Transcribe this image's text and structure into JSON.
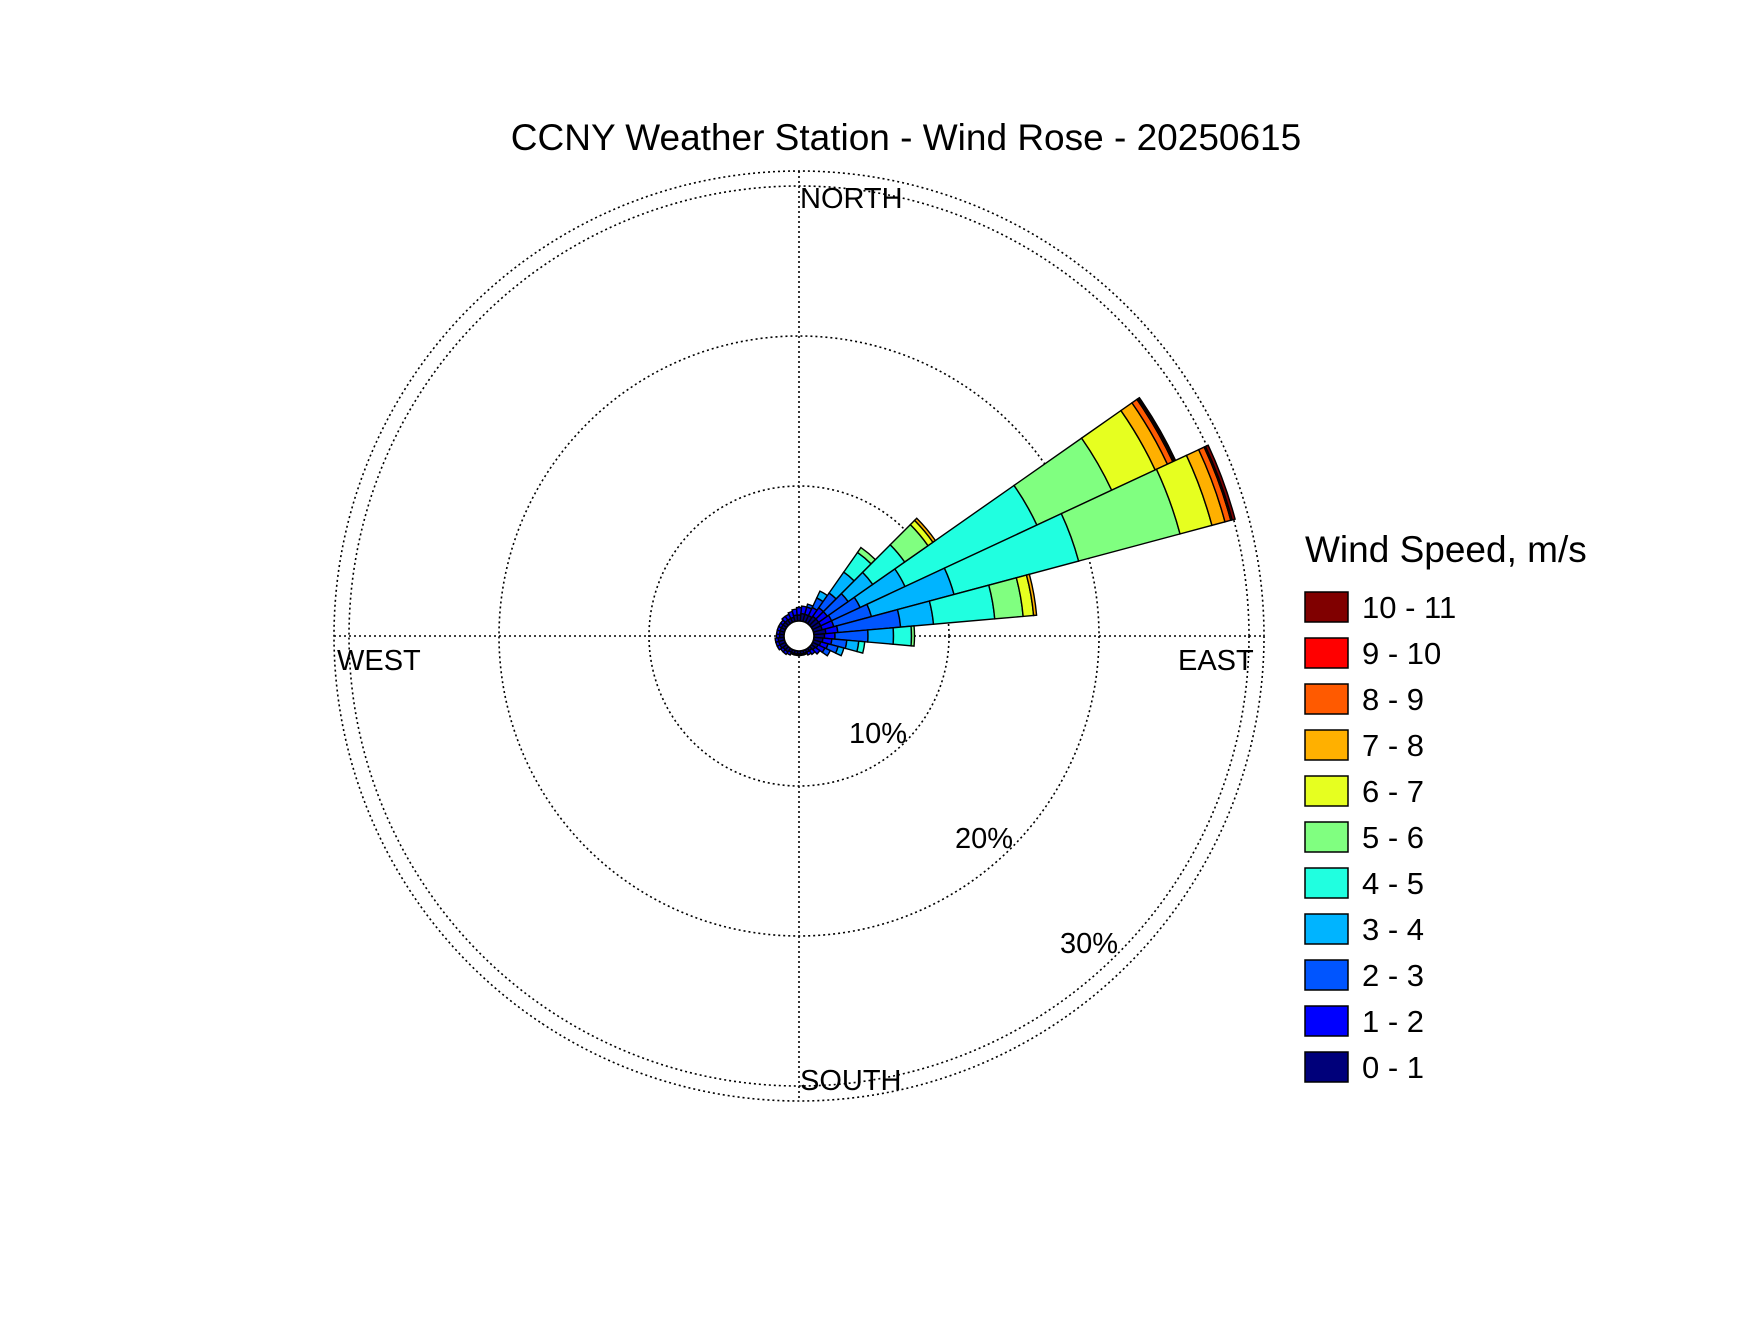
{
  "chart_data": {
    "type": "windrose",
    "title": "CCNY Weather Station - Wind Rose - 20250615",
    "direction_labels": {
      "north": "NORTH",
      "east": "EAST",
      "south": "SOUTH",
      "west": "WEST"
    },
    "radial_axis": {
      "ticks": [
        10,
        20,
        30
      ],
      "tick_labels": [
        "10%",
        "20%",
        "30%"
      ],
      "max": 31,
      "unit": "%"
    },
    "grid": true,
    "legend": {
      "title": "Wind Speed, m/s",
      "placement": "right",
      "bins": [
        {
          "label": "10 - 11",
          "color": "#800000"
        },
        {
          "label": "9 - 10",
          "color": "#ff0000"
        },
        {
          "label": "8 - 9",
          "color": "#ff5a00"
        },
        {
          "label": "7 - 8",
          "color": "#ffb000"
        },
        {
          "label": "6 - 7",
          "color": "#e6ff20"
        },
        {
          "label": "5 - 6",
          "color": "#80ff80"
        },
        {
          "label": "4 - 5",
          "color": "#20ffe0"
        },
        {
          "label": "3 - 4",
          "color": "#00b4ff"
        },
        {
          "label": "2 - 3",
          "color": "#0055ff"
        },
        {
          "label": "1 - 2",
          "color": "#0000ff"
        },
        {
          "label": "0 - 1",
          "color": "#00007a"
        }
      ]
    },
    "bin_colors_low_to_high": [
      "#00007a",
      "#0000ff",
      "#0055ff",
      "#00b4ff",
      "#20ffe0",
      "#80ff80",
      "#e6ff20",
      "#ffb000",
      "#ff5a00",
      "#ff0000",
      "#800000"
    ],
    "center_radius_percent": 1.0,
    "sector_width_deg": 10,
    "sectors": [
      {
        "direction_deg": 60,
        "cumulative_percent": [
          1.6,
          2.4,
          4.5,
          7.8,
          17.5,
          23.0,
          26.2,
          27.1,
          27.5,
          27.6,
          27.7
        ]
      },
      {
        "direction_deg": 70,
        "cumulative_percent": [
          1.6,
          2.4,
          5.0,
          10.7,
          19.3,
          26.3,
          28.5,
          29.4,
          29.8,
          29.9,
          30.1
        ]
      },
      {
        "direction_deg": 80,
        "cumulative_percent": [
          1.8,
          2.6,
          6.8,
          9.0,
          13.1,
          15.0,
          15.7,
          15.9
        ]
      },
      {
        "direction_deg": 90,
        "cumulative_percent": [
          1.7,
          2.4,
          4.6,
          6.3,
          7.5,
          7.7
        ]
      },
      {
        "direction_deg": 100,
        "cumulative_percent": [
          1.6,
          2.2,
          3.2,
          4.0,
          4.4
        ]
      },
      {
        "direction_deg": 110,
        "cumulative_percent": [
          1.5,
          2.0,
          2.7,
          3.1
        ]
      },
      {
        "direction_deg": 120,
        "cumulative_percent": [
          1.4,
          1.9,
          2.3
        ]
      },
      {
        "direction_deg": 130,
        "cumulative_percent": [
          1.3,
          1.7
        ]
      },
      {
        "direction_deg": 140,
        "cumulative_percent": [
          1.2,
          1.5
        ]
      },
      {
        "direction_deg": 150,
        "cumulative_percent": [
          1.2,
          1.4
        ]
      },
      {
        "direction_deg": 160,
        "cumulative_percent": [
          1.2,
          1.3
        ]
      },
      {
        "direction_deg": 170,
        "cumulative_percent": [
          1.2,
          1.3
        ]
      },
      {
        "direction_deg": 180,
        "cumulative_percent": [
          1.2,
          1.3
        ]
      },
      {
        "direction_deg": 190,
        "cumulative_percent": [
          1.2,
          1.3
        ]
      },
      {
        "direction_deg": 200,
        "cumulative_percent": [
          1.2,
          1.3
        ]
      },
      {
        "direction_deg": 210,
        "cumulative_percent": [
          1.2,
          1.4
        ]
      },
      {
        "direction_deg": 220,
        "cumulative_percent": [
          1.3,
          1.5
        ]
      },
      {
        "direction_deg": 230,
        "cumulative_percent": [
          1.3,
          1.5
        ]
      },
      {
        "direction_deg": 240,
        "cumulative_percent": [
          1.4,
          1.6
        ]
      },
      {
        "direction_deg": 250,
        "cumulative_percent": [
          1.4,
          1.6
        ]
      },
      {
        "direction_deg": 260,
        "cumulative_percent": [
          1.4,
          1.6
        ]
      },
      {
        "direction_deg": 270,
        "cumulative_percent": [
          1.3,
          1.5
        ]
      },
      {
        "direction_deg": 280,
        "cumulative_percent": [
          1.3,
          1.5
        ]
      },
      {
        "direction_deg": 290,
        "cumulative_percent": [
          1.3,
          1.5
        ]
      },
      {
        "direction_deg": 300,
        "cumulative_percent": [
          1.3,
          1.5
        ]
      },
      {
        "direction_deg": 310,
        "cumulative_percent": [
          1.3,
          1.5
        ]
      },
      {
        "direction_deg": 320,
        "cumulative_percent": [
          1.3,
          1.6
        ]
      },
      {
        "direction_deg": 330,
        "cumulative_percent": [
          1.3,
          1.6
        ]
      },
      {
        "direction_deg": 340,
        "cumulative_percent": [
          1.3,
          1.7
        ]
      },
      {
        "direction_deg": 350,
        "cumulative_percent": [
          1.4,
          1.8
        ]
      },
      {
        "direction_deg": 0,
        "cumulative_percent": [
          1.4,
          1.9
        ]
      },
      {
        "direction_deg": 10,
        "cumulative_percent": [
          1.5,
          2.0
        ]
      },
      {
        "direction_deg": 20,
        "cumulative_percent": [
          1.5,
          2.0,
          2.2
        ]
      },
      {
        "direction_deg": 30,
        "cumulative_percent": [
          1.5,
          2.1,
          2.8,
          3.3
        ]
      },
      {
        "direction_deg": 40,
        "cumulative_percent": [
          1.6,
          2.3,
          3.5,
          5.2,
          6.8,
          7.2
        ]
      },
      {
        "direction_deg": 50,
        "cumulative_percent": [
          1.6,
          2.3,
          4.0,
          6.0,
          8.6,
          10.5,
          10.9,
          11.1
        ]
      }
    ]
  }
}
